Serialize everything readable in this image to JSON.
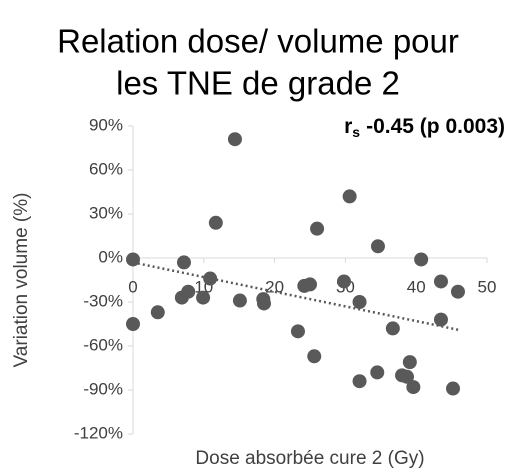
{
  "chart_data": {
    "type": "scatter",
    "title": [
      "Relation dose/ volume pour",
      "les TNE de grade 2"
    ],
    "annotation": {
      "symbol": "r",
      "subscript": "s",
      "text": "-0.45 (p 0.003)"
    },
    "x_label": "Dose absorbée cure 2 (Gy)",
    "y_label": "Variation volume (%)",
    "xlim": [
      0,
      50
    ],
    "xticks": [
      0,
      10,
      20,
      30,
      40,
      50
    ],
    "ylim": [
      -120,
      90
    ],
    "yticks": [
      {
        "value": 90,
        "label": "90%"
      },
      {
        "value": 60,
        "label": "60%"
      },
      {
        "value": 30,
        "label": "30%"
      },
      {
        "value": 0,
        "label": "0%"
      },
      {
        "value": -30,
        "label": "-30%"
      },
      {
        "value": -60,
        "label": "-60%"
      },
      {
        "value": -90,
        "label": "-90%"
      },
      {
        "value": -120,
        "label": "-120%"
      }
    ],
    "color": "#595959",
    "x": [
      0,
      0,
      3.5,
      7.2,
      6.9,
      7.8,
      9.9,
      10.9,
      11.7,
      14.4,
      15.1,
      18.4,
      18.5,
      23.3,
      24.2,
      25,
      26,
      25.6,
      29.8,
      30.6,
      32,
      32,
      34.5,
      34.6,
      36.7,
      38,
      38.7,
      39.1,
      39.6,
      40.7,
      43.5,
      43.5,
      45.2,
      45.9
    ],
    "values": [
      -1,
      -45,
      -37,
      -3,
      -27,
      -23,
      -27,
      -14,
      24,
      81,
      -29,
      -28,
      -31,
      -50,
      -19,
      -18,
      20,
      -67,
      -16,
      42,
      -30,
      -84,
      -78,
      8,
      -48,
      -80,
      -81,
      -71,
      -88,
      -1,
      -16,
      -42,
      -89,
      -23
    ],
    "trendline": {
      "x": [
        0,
        46
      ],
      "values": [
        -3,
        -49
      ],
      "color": "#595959"
    }
  }
}
